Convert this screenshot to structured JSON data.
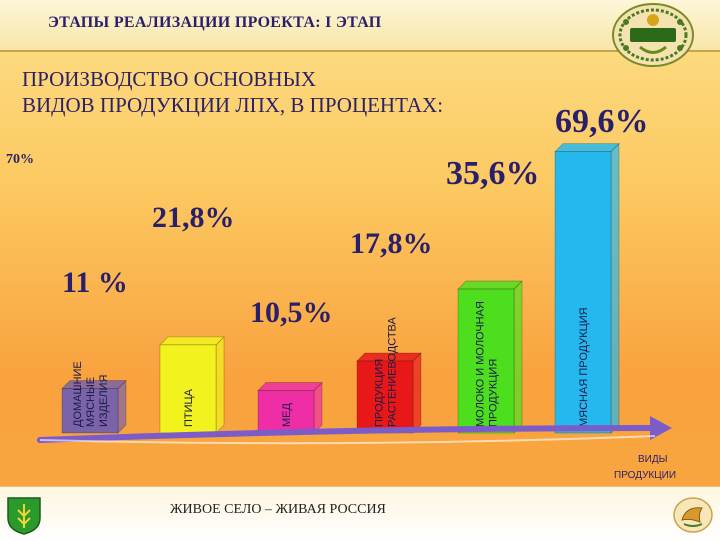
{
  "header": {
    "title": "ЭТАПЫ РЕАЛИЗАЦИИ ПРОЕКТА: I ЭТАП"
  },
  "subtitle": {
    "line1": "ПРОИЗВОДСТВО ОСНОВНЫХ",
    "line2": "ВИДОВ ПРОДУКЦИИ ЛПХ, В ПРОЦЕНТАХ:"
  },
  "footer": {
    "slogan": "ЖИВОЕ СЕЛО – ЖИВАЯ РОССИЯ"
  },
  "colors": {
    "title_text": "#2a1f6a",
    "arrow": "#7c5cc8"
  },
  "chart_data": {
    "type": "bar",
    "ylabel": "70%",
    "xlabel": "ВИДЫ ПРОДУКЦИИ",
    "ylim": [
      0,
      70
    ],
    "bars": [
      {
        "label": "ДОМАШНИЕ МЯСНЫЕ ИЗДЕЛИЯ",
        "label_lines": [
          "ДОМАШНИЕ",
          "МЯСНЫЕ",
          "ИЗДЕЛИЯ"
        ],
        "value": 11,
        "value_label": "11 %",
        "color": "#7a63a8"
      },
      {
        "label": "ПТИЦА",
        "label_lines": [
          "ПТИЦА"
        ],
        "value": 21.8,
        "value_label": "21,8%",
        "color": "#f2f21e"
      },
      {
        "label": "МЕД",
        "label_lines": [
          "МЕД"
        ],
        "value": 10.5,
        "value_label": "10,5%",
        "color": "#ef2ea6"
      },
      {
        "label": "ПРОДУКЦИЯ РАСТЕНИЕВОДСТВА",
        "label_lines": [
          "ПРОДУКЦИЯ",
          "РАСТЕНИЕВОДСТВА"
        ],
        "value": 17.8,
        "value_label": "17,8%",
        "color": "#e81818"
      },
      {
        "label": "МОЛОКО И МОЛОЧНАЯ ПРОДУКЦИЯ",
        "label_lines": [
          "МОЛОКО И МОЛОЧНАЯ",
          "ПРОДУКЦИЯ"
        ],
        "value": 35.6,
        "value_label": "35,6%",
        "color": "#4ddf1e"
      },
      {
        "label": "МЯСНАЯ ПРОДУКЦИЯ",
        "label_lines": [
          "МЯСНАЯ ПРОДУКЦИЯ"
        ],
        "value": 69.6,
        "value_label": "69,6%",
        "color": "#25b8ee"
      }
    ]
  }
}
